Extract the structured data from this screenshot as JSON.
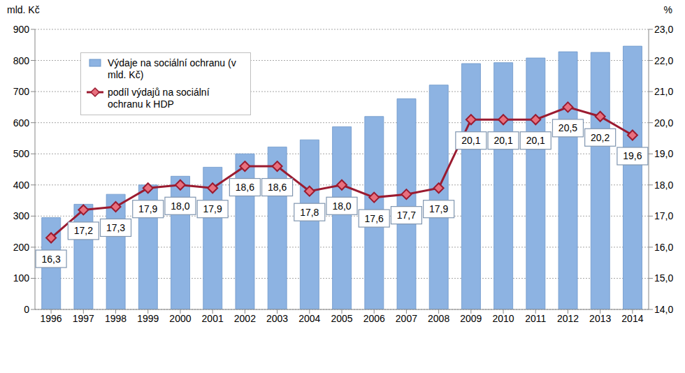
{
  "chart_data": {
    "type": "bar",
    "y_label": "mld. Kč",
    "y2_label": "%",
    "categories": [
      "1996",
      "1997",
      "1998",
      "1999",
      "2000",
      "2001",
      "2002",
      "2003",
      "2004",
      "2005",
      "2006",
      "2007",
      "2008",
      "2009",
      "2010",
      "2011",
      "2012",
      "2013",
      "2014"
    ],
    "series": [
      {
        "name": "Výdaje na sociální ochranu (v mld. Kč)",
        "type": "bar",
        "color": "#8db3e2",
        "values": [
          295,
          338,
          370,
          400,
          428,
          457,
          500,
          522,
          545,
          587,
          620,
          677,
          721,
          790,
          793,
          808,
          828,
          826,
          846
        ]
      },
      {
        "name": "podíl výdajů na sociální ochranu k HDP",
        "type": "line",
        "axis": "y2",
        "color": "#9b1b30",
        "marker": "diamond",
        "data_labels": true,
        "values": [
          16.3,
          17.2,
          17.3,
          17.9,
          18.0,
          17.9,
          18.6,
          18.6,
          17.8,
          18.0,
          17.6,
          17.7,
          17.9,
          20.1,
          20.1,
          20.1,
          20.5,
          20.2,
          19.6
        ],
        "value_labels": [
          "16,3",
          "17,2",
          "17,3",
          "17,9",
          "18,0",
          "17,9",
          "18,6",
          "18,6",
          "17,8",
          "18,0",
          "17,6",
          "17,7",
          "17,9",
          "20,1",
          "20,1",
          "20,1",
          "20,5",
          "20,2",
          "19,6"
        ]
      }
    ],
    "ylim": [
      0,
      900
    ],
    "yticks": [
      0,
      100,
      200,
      300,
      400,
      500,
      600,
      700,
      800,
      900
    ],
    "y2lim": [
      14,
      23
    ],
    "y2ticks": [
      {
        "value": 14,
        "label": "14,0"
      },
      {
        "value": 15,
        "label": "15,0"
      },
      {
        "value": 16,
        "label": "16,0"
      },
      {
        "value": 17,
        "label": "17,0"
      },
      {
        "value": 18,
        "label": "18,0"
      },
      {
        "value": 19,
        "label": "19,0"
      },
      {
        "value": 20,
        "label": "20,0"
      },
      {
        "value": 21,
        "label": "21,0"
      },
      {
        "value": 22,
        "label": "22,0"
      },
      {
        "value": 23,
        "label": "23,0"
      }
    ],
    "grid": true,
    "legend": "upper left"
  }
}
